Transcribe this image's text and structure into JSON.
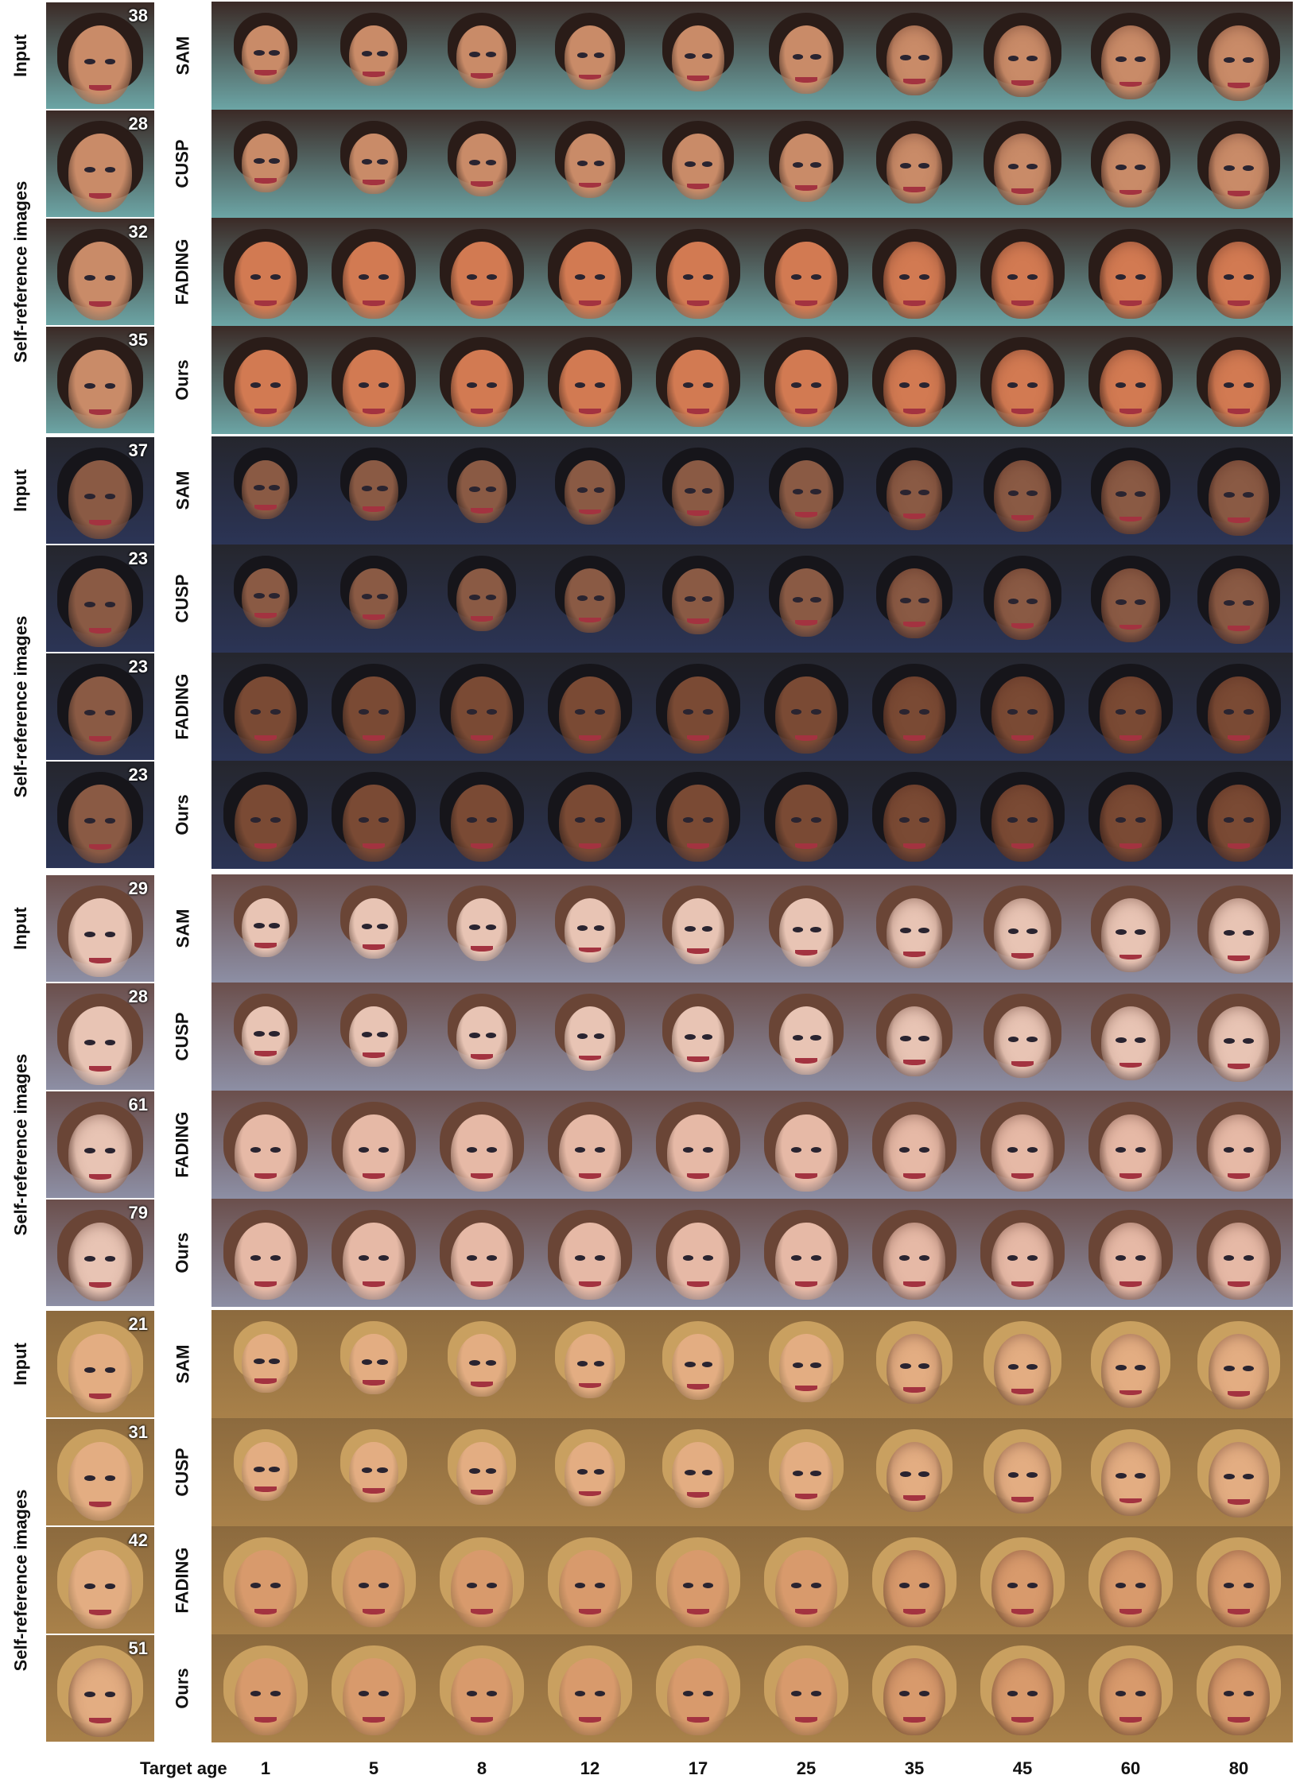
{
  "axis": {
    "title": "Target age",
    "ages": [
      "1",
      "5",
      "8",
      "12",
      "17",
      "25",
      "35",
      "45",
      "60",
      "80"
    ]
  },
  "row_labels": {
    "input": "Input",
    "self_reference": "Self-reference images"
  },
  "methods": [
    "SAM",
    "CUSP",
    "FADING",
    "Ours"
  ],
  "groups": [
    {
      "input_age": "38",
      "self_reference_ages": [
        "28",
        "32",
        "35"
      ],
      "colors": {
        "bg": "#3b2a26",
        "skin": "#c98b68",
        "hair": "#2a1c18",
        "ours_skin": "#d27a52",
        "accent": "#7fd6d8"
      }
    },
    {
      "input_age": "37",
      "self_reference_ages": [
        "23",
        "23",
        "23"
      ],
      "colors": {
        "bg": "#25262d",
        "skin": "#8a5a44",
        "hair": "#16151a",
        "ours_skin": "#7a4a34",
        "accent": "#2e3a66"
      }
    },
    {
      "input_age": "29",
      "self_reference_ages": [
        "28",
        "61",
        "79"
      ],
      "colors": {
        "bg": "#6b4f4c",
        "skin": "#e8c4b4",
        "hair": "#6a4536",
        "ours_skin": "#e6b9a6",
        "accent": "#9aa8c8"
      }
    },
    {
      "input_age": "21",
      "self_reference_ages": [
        "31",
        "42",
        "51"
      ],
      "colors": {
        "bg": "#8c6a3e",
        "skin": "#e3ad82",
        "hair": "#c9a060",
        "ours_skin": "#d89a6c",
        "accent": "#b48a4e"
      }
    }
  ]
}
